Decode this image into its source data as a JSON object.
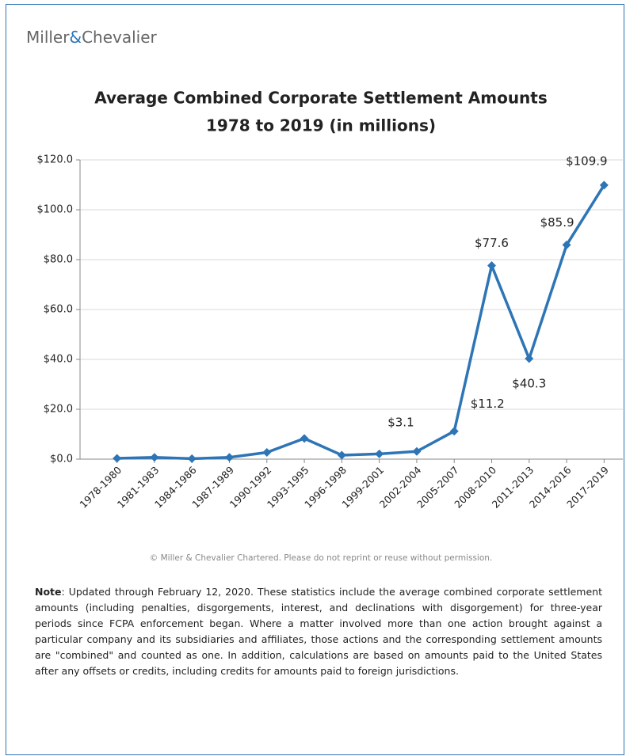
{
  "brand": {
    "first": "Miller",
    "amp": "&",
    "second": "Chevalier"
  },
  "chart_data": {
    "type": "line",
    "title": "Average Combined Corporate Settlement Amounts",
    "subtitle": "1978 to 2019 (in millions)",
    "categories": [
      "1978-1980",
      "1981-1983",
      "1984-1986",
      "1987-1989",
      "1990-1992",
      "1993-1995",
      "1996-1998",
      "1999-2001",
      "2002-2004",
      "2005-2007",
      "2008-2010",
      "2011-2013",
      "2014-2016",
      "2017-2019"
    ],
    "values": [
      0.3,
      0.7,
      0.2,
      0.7,
      2.7,
      8.3,
      1.6,
      2.1,
      3.1,
      11.2,
      77.6,
      40.3,
      85.9,
      109.9
    ],
    "value_labels": [
      null,
      null,
      null,
      null,
      null,
      null,
      null,
      null,
      "$3.1",
      "$11.2",
      "$77.6",
      "$40.3",
      "$85.9",
      "$109.9"
    ],
    "color": "#2e75b6",
    "ylim": [
      0,
      120
    ],
    "yticks": [
      {
        "value": 0,
        "label": "$0.0"
      },
      {
        "value": 20,
        "label": "$20.0"
      },
      {
        "value": 40,
        "label": "$40.0"
      },
      {
        "value": 60,
        "label": "$60.0"
      },
      {
        "value": 80,
        "label": "$80.0"
      },
      {
        "value": 100,
        "label": "$100.0"
      },
      {
        "value": 120,
        "label": "$120.0"
      }
    ],
    "grid": true
  },
  "copyright": "© Miller & Chevalier Chartered. Please do not reprint or reuse without permission.",
  "note": {
    "label": "Note",
    "text": ": Updated through February 12, 2020. These statistics include the average combined corporate settlement amounts (including penalties, disgorgements, interest, and declinations with disgorgement) for three-year periods since FCPA enforcement began. Where a matter involved more than one action brought against a particular company and its subsidiaries and affiliates, those actions and the corresponding settlement amounts are \"combined\" and counted as one. In addition, calculations are based on amounts paid to the United States after any offsets or credits, including credits for amounts paid to foreign jurisdictions."
  }
}
